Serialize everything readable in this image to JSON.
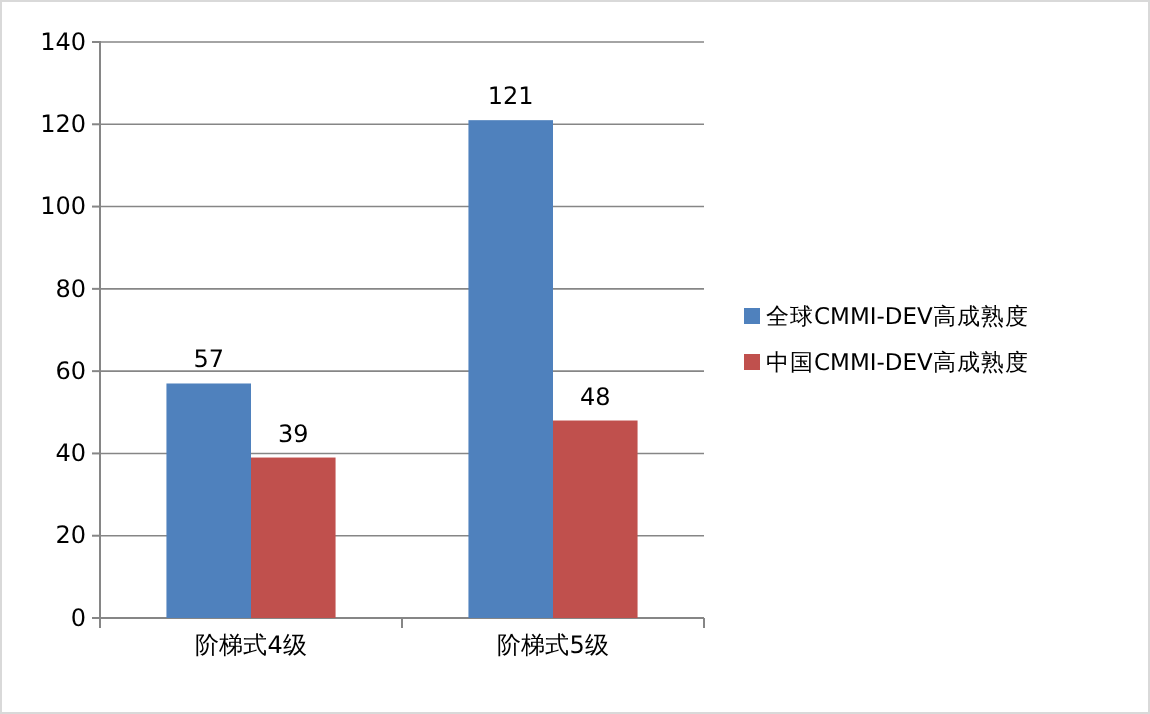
{
  "chart_data": {
    "type": "bar",
    "categories": [
      "阶梯式4级",
      "阶梯式5级"
    ],
    "series": [
      {
        "name": "全球CMMI-DEV高成熟度",
        "color": "#4f81bd",
        "values": [
          57,
          121
        ]
      },
      {
        "name": "中国CMMI-DEV高成熟度",
        "color": "#c0504d",
        "values": [
          39,
          48
        ]
      }
    ],
    "ylim": [
      0,
      140
    ],
    "yticks": [
      0,
      20,
      40,
      60,
      80,
      100,
      120,
      140
    ],
    "grid": "y",
    "legend": "right",
    "data_labels": true
  }
}
